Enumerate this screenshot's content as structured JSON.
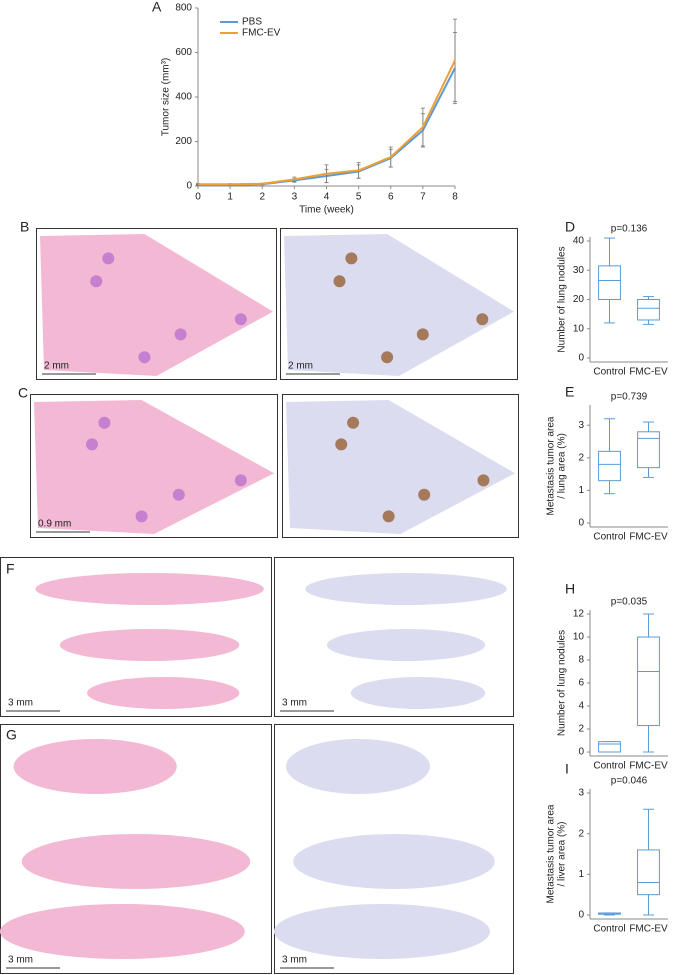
{
  "panel_labels": [
    "A",
    "B",
    "C",
    "D",
    "E",
    "F",
    "G",
    "H",
    "I"
  ],
  "scale_bars": [
    "2 mm",
    "2 mm",
    "0.9 mm",
    "3 mm",
    "3 mm",
    "3 mm",
    "3 mm"
  ],
  "chart_data": [
    {
      "type": "line",
      "x_label": "Time (week)",
      "y_label": "Tumor size (mm³)",
      "x": [
        0,
        1,
        2,
        3,
        4,
        5,
        6,
        7,
        8
      ],
      "xlim": [
        0,
        8
      ],
      "xticks": [
        0,
        1,
        2,
        3,
        4,
        5,
        6,
        7,
        8
      ],
      "ylim": [
        0,
        800
      ],
      "yticks": [
        0,
        200,
        400,
        600,
        800
      ],
      "legend": "upper-left",
      "series": [
        {
          "name": "PBS",
          "color": "#5b9bd5",
          "values": [
            5,
            5,
            8,
            25,
            45,
            65,
            125,
            250,
            530
          ],
          "errors": [
            3,
            3,
            3,
            8,
            30,
            30,
            40,
            75,
            160
          ]
        },
        {
          "name": "FMC-EV",
          "color": "#f0a030",
          "values": [
            8,
            8,
            10,
            30,
            55,
            70,
            130,
            265,
            565
          ],
          "errors": [
            3,
            3,
            3,
            10,
            40,
            35,
            45,
            85,
            185
          ]
        }
      ]
    },
    {
      "type": "box",
      "annotation": "p=0.136",
      "y_label": [
        "Number of lung nodules"
      ],
      "color": "#5b9bd5",
      "categories": [
        "Control",
        "FMC-EV"
      ],
      "ylim": [
        0,
        40
      ],
      "yticks": [
        0,
        10,
        20,
        30,
        40
      ],
      "series": [
        {
          "min": 12,
          "q1": 20,
          "median": 26.5,
          "q3": 31.5,
          "max": 41
        },
        {
          "min": 11.5,
          "q1": 13,
          "median": 17,
          "q3": 20,
          "max": 21
        }
      ]
    },
    {
      "type": "box",
      "annotation": "p=0.739",
      "y_label": [
        "Metastasis tumor area",
        "/ lung area (%)"
      ],
      "color": "#5b9bd5",
      "categories": [
        "Control",
        "FMC-EV"
      ],
      "ylim": [
        0,
        3.5
      ],
      "yticks": [
        0,
        1,
        2,
        3
      ],
      "series": [
        {
          "min": 0.9,
          "q1": 1.3,
          "median": 1.8,
          "q3": 2.2,
          "max": 3.2
        },
        {
          "min": 1.4,
          "q1": 1.7,
          "median": 2.6,
          "q3": 2.8,
          "max": 3.1
        }
      ]
    },
    {
      "type": "box",
      "annotation": "p=0.035",
      "y_label": [
        "Number of lung nodules"
      ],
      "color": "#5b9bd5",
      "categories": [
        "Control",
        "FMC-EV"
      ],
      "ylim": [
        0,
        12
      ],
      "yticks": [
        0,
        2,
        4,
        6,
        8,
        10,
        12
      ],
      "series": [
        {
          "min": 0,
          "q1": 0,
          "median": 0.7,
          "q3": 0.9,
          "max": 0.9
        },
        {
          "min": 0,
          "q1": 2.3,
          "median": 7,
          "q3": 10,
          "max": 12
        }
      ]
    },
    {
      "type": "box",
      "annotation": "p=0.046",
      "y_label": [
        "Metastasis tumor area",
        "/ liver area (%)"
      ],
      "color": "#5b9bd5",
      "categories": [
        "Control",
        "FMC-EV"
      ],
      "ylim": [
        0,
        3
      ],
      "yticks": [
        0,
        1,
        2,
        3
      ],
      "series": [
        {
          "min": 0,
          "q1": 0.02,
          "median": 0.02,
          "q3": 0.05,
          "max": 0.05
        },
        {
          "min": 0,
          "q1": 0.5,
          "median": 0.8,
          "q3": 1.6,
          "max": 2.6
        }
      ]
    }
  ]
}
